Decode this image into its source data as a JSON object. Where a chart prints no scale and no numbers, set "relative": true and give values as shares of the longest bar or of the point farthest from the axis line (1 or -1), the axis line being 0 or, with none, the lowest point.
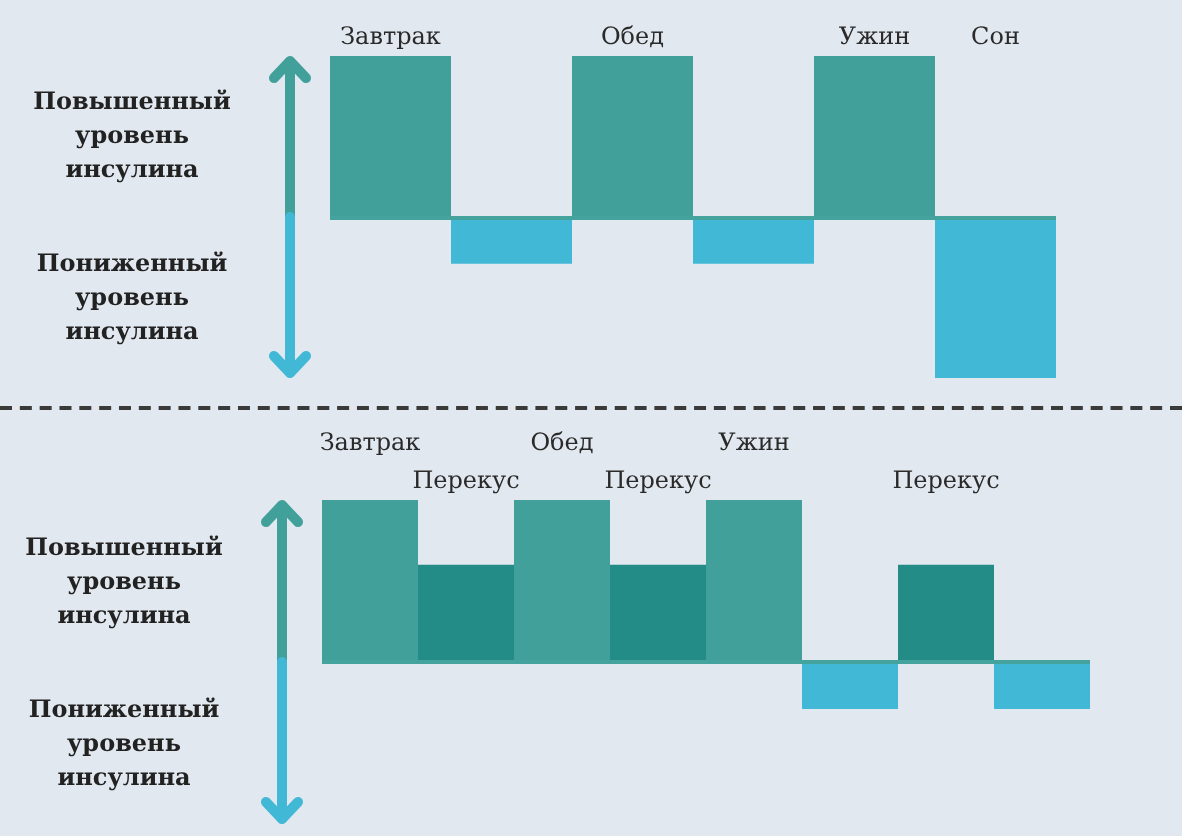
{
  "chart_data": [
    {
      "type": "bar",
      "categories": [
        "Завтрак",
        null,
        "Обед",
        null,
        "Ужин",
        "Сон"
      ],
      "values": [
        1,
        -0.29,
        1,
        -0.29,
        1,
        -1
      ],
      "colors": [
        "#42a09b",
        "#40b8d6",
        "#42a09b",
        "#40b8d6",
        "#42a09b",
        "#40b8d6"
      ],
      "relative": true,
      "ref_lines": [
        {
          "axis": "y",
          "value": 0,
          "color": "#45a39e"
        }
      ],
      "annotations": [
        "Повышенный уровень инсулина",
        "Пониженный уровень инсулина"
      ]
    },
    {
      "type": "bar",
      "categories": [
        "Завтрак",
        "Перекус",
        "Обед",
        "Перекус",
        "Ужин",
        null,
        "Перекус",
        null
      ],
      "values": [
        1,
        0.6,
        1,
        0.6,
        1,
        -0.29,
        0.6,
        -0.29
      ],
      "colors": [
        "#42a09b",
        "#248c87",
        "#42a09b",
        "#248c87",
        "#42a09b",
        "#40b8d6",
        "#248c87",
        "#40b8d6"
      ],
      "relative": true,
      "ref_lines": [
        {
          "axis": "y",
          "value": 0,
          "color": "#45a39e"
        }
      ],
      "annotations": [
        "Повышенный уровень инсулина",
        "Пониженный уровень инсулина"
      ]
    }
  ]
}
